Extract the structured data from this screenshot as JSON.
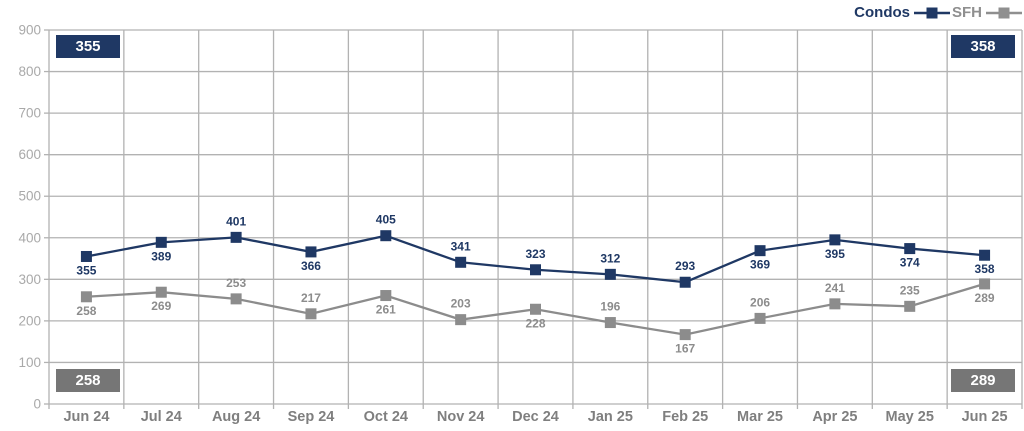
{
  "legend": {
    "items": [
      {
        "label": "Condos",
        "color": "#1F3864"
      },
      {
        "label": "SFH",
        "color": "#8F8F8F"
      }
    ]
  },
  "badges": {
    "top_left": "355",
    "top_right": "358",
    "bottom_left": "258",
    "bottom_right": "289"
  },
  "badge_colors": {
    "condos": "#1F3864",
    "sfh": "#767676"
  },
  "chart_data": {
    "type": "line",
    "title": "",
    "categories": [
      "Jun 24",
      "Jul 24",
      "Aug 24",
      "Sep 24",
      "Oct 24",
      "Nov 24",
      "Dec 24",
      "Jan 25",
      "Feb 25",
      "Mar 25",
      "Apr 25",
      "May 25",
      "Jun 25"
    ],
    "series": [
      {
        "name": "Condos",
        "color": "#1F3864",
        "values": [
          355,
          389,
          401,
          366,
          405,
          341,
          323,
          312,
          293,
          369,
          395,
          374,
          358
        ],
        "label_positions": [
          "below",
          "below",
          "above",
          "below",
          "above",
          "above",
          "above",
          "above",
          "above",
          "below",
          "below",
          "below",
          "below"
        ]
      },
      {
        "name": "SFH",
        "color": "#8C8C8C",
        "values": [
          258,
          269,
          253,
          217,
          261,
          203,
          228,
          196,
          167,
          206,
          241,
          235,
          289
        ],
        "label_positions": [
          "below",
          "below",
          "above",
          "above",
          "below",
          "above",
          "below",
          "above",
          "below",
          "above",
          "above",
          "above",
          "below"
        ]
      }
    ],
    "ylim": [
      0,
      900
    ],
    "ytick_step": 100,
    "grid": true,
    "legend_position": "top-right",
    "axis_colors": {
      "grid": "#B2B2B2",
      "y_tick_label": "#A9A9A9",
      "x_tick_label": "#7F7F7F"
    }
  }
}
